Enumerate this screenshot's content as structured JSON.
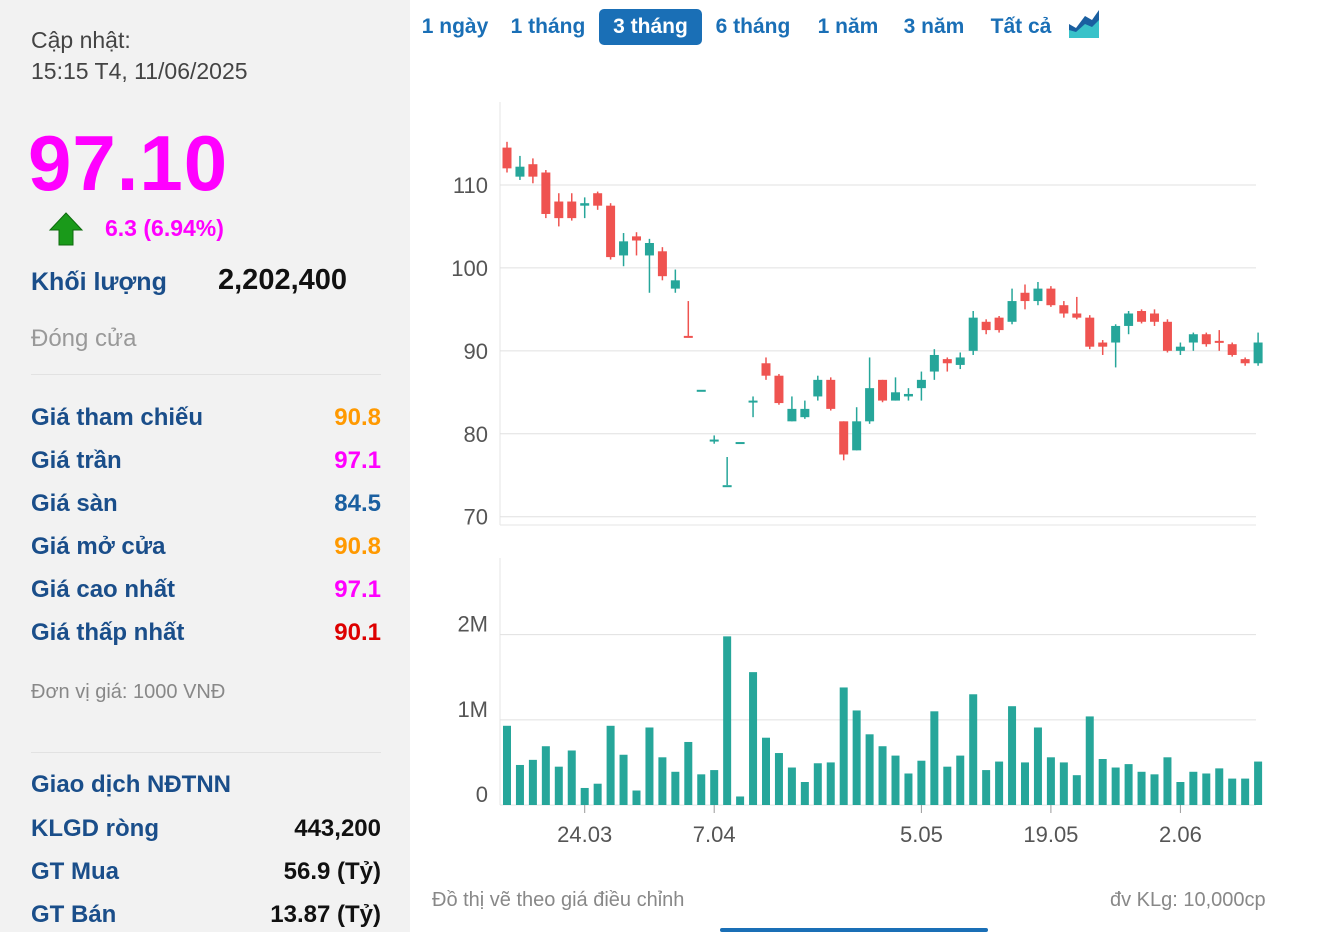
{
  "updated": {
    "label": "Cập nhật:",
    "time": "15:15 T4, 11/06/2025"
  },
  "price": "97.10",
  "change": "6.3 (6.94%)",
  "volume": {
    "label": "Khối lượng",
    "value": "2,202,400"
  },
  "close_label": "Đóng cửa",
  "stats": [
    {
      "label": "Giá tham chiếu",
      "value": "90.8",
      "color": "#ff9900"
    },
    {
      "label": "Giá trần",
      "value": "97.1",
      "color": "#ff00ff"
    },
    {
      "label": "Giá sàn",
      "value": "84.5",
      "color": "#1a5fa0"
    },
    {
      "label": "Giá mở cửa",
      "value": "90.8",
      "color": "#ff9900"
    },
    {
      "label": "Giá cao nhất",
      "value": "97.1",
      "color": "#ff00ff"
    },
    {
      "label": "Giá thấp nhất",
      "value": "90.1",
      "color": "#dd0000"
    }
  ],
  "unit_note": "Đơn vị giá: 1000 VNĐ",
  "foreign": {
    "title": "Giao dịch NĐTNN",
    "rows": [
      {
        "label": "KLGD ròng",
        "value": "443,200"
      },
      {
        "label": "GT Mua",
        "value": "56.9 (Tỷ)"
      },
      {
        "label": "GT Bán",
        "value": "13.87 (Tỷ)"
      }
    ]
  },
  "tabs": [
    {
      "label": "1 ngày",
      "active": false
    },
    {
      "label": "1 tháng",
      "active": false
    },
    {
      "label": "3 tháng",
      "active": true
    },
    {
      "label": "6 tháng",
      "active": false
    },
    {
      "label": "1 năm",
      "active": false
    },
    {
      "label": "3 năm",
      "active": false
    },
    {
      "label": "Tất cả",
      "active": false
    }
  ],
  "chart_icon": "area-chart-icon",
  "colors": {
    "up": "#26a69a",
    "down": "#ef5350",
    "accent": "#1a6fb6",
    "ceiling": "#ff00ff"
  },
  "footer": {
    "left": "Đồ thị vẽ theo giá điều chỉnh",
    "right": "đv KLg: 10,000cp"
  },
  "chart_data": {
    "type": "candlestick",
    "price_axis": {
      "ticks": [
        70,
        80,
        90,
        100,
        110
      ],
      "labels": [
        "70",
        "80",
        "90",
        "100",
        "110"
      ],
      "range": [
        69,
        120
      ]
    },
    "volume_axis": {
      "ticks": [
        0,
        1,
        2
      ],
      "labels": [
        "0",
        "1M",
        "2M"
      ],
      "range": [
        0,
        2.9
      ]
    },
    "x_labels": [
      {
        "label": "24.03",
        "index": 6
      },
      {
        "label": "7.04",
        "index": 16
      },
      {
        "label": "5.05",
        "index": 32
      },
      {
        "label": "19.05",
        "index": 42
      },
      {
        "label": "2.06",
        "index": 52
      }
    ],
    "grid": true,
    "candles": [
      [
        114.5,
        112.0,
        115.2,
        111.5
      ],
      [
        111.0,
        112.2,
        113.5,
        110.6
      ],
      [
        112.5,
        111.0,
        113.2,
        110.2
      ],
      [
        111.5,
        106.5,
        111.8,
        106.0
      ],
      [
        108.0,
        106.0,
        109.0,
        105.0
      ],
      [
        108.0,
        106.0,
        109.0,
        105.7
      ],
      [
        107.5,
        107.8,
        108.5,
        106.0
      ],
      [
        109.0,
        107.5,
        109.2,
        107.0
      ],
      [
        107.5,
        101.3,
        107.8,
        101.0
      ],
      [
        101.5,
        103.2,
        104.2,
        100.2
      ],
      [
        103.8,
        103.3,
        104.3,
        101.5
      ],
      [
        101.5,
        103.0,
        103.5,
        97.0
      ],
      [
        102.0,
        99.0,
        102.5,
        98.5
      ],
      [
        97.5,
        98.5,
        99.8,
        97.0
      ],
      [
        91.8,
        91.7,
        96.0,
        91.7
      ],
      [
        85.3,
        85.3,
        85.3,
        85.3
      ],
      [
        79.3,
        79.3,
        79.8,
        78.8
      ],
      [
        73.8,
        73.8,
        77.2,
        73.8
      ],
      [
        79.0,
        79.0,
        79.0,
        79.0
      ],
      [
        84.0,
        84.0,
        84.5,
        82.0
      ],
      [
        88.5,
        87.0,
        89.2,
        86.5
      ],
      [
        87.0,
        83.7,
        87.2,
        83.5
      ],
      [
        81.5,
        83.0,
        84.5,
        81.5
      ],
      [
        82.0,
        83.0,
        84.0,
        81.8
      ],
      [
        84.5,
        86.5,
        87.0,
        84.0
      ],
      [
        86.5,
        83.0,
        86.8,
        82.8
      ],
      [
        81.5,
        77.5,
        81.5,
        76.8
      ],
      [
        78.0,
        81.5,
        83.2,
        78.0
      ],
      [
        81.5,
        85.5,
        89.2,
        81.2
      ],
      [
        86.5,
        84.0,
        86.5,
        83.8
      ],
      [
        84.0,
        85.0,
        86.8,
        84.0
      ],
      [
        84.5,
        84.8,
        85.5,
        84.0
      ],
      [
        85.5,
        86.5,
        87.5,
        84.0
      ],
      [
        87.5,
        89.5,
        90.2,
        86.5
      ],
      [
        89.0,
        88.5,
        89.2,
        87.5
      ],
      [
        88.3,
        89.2,
        89.8,
        87.8
      ],
      [
        90.0,
        94.0,
        94.8,
        89.5
      ],
      [
        93.5,
        92.5,
        93.8,
        92.0
      ],
      [
        94.0,
        92.5,
        94.2,
        92.2
      ],
      [
        93.5,
        96.0,
        97.5,
        93.2
      ],
      [
        97.0,
        96.0,
        98.0,
        95.0
      ],
      [
        96.0,
        97.5,
        98.3,
        95.5
      ],
      [
        97.5,
        95.5,
        97.8,
        95.3
      ],
      [
        95.5,
        94.5,
        96.0,
        94.0
      ],
      [
        94.5,
        94.0,
        96.5,
        93.8
      ],
      [
        94.0,
        90.5,
        94.3,
        90.2
      ],
      [
        91.0,
        90.5,
        91.3,
        89.5
      ],
      [
        91.0,
        93.0,
        93.2,
        88.0
      ],
      [
        93.0,
        94.5,
        94.8,
        92.0
      ],
      [
        94.8,
        93.5,
        95.0,
        93.3
      ],
      [
        94.5,
        93.5,
        95.0,
        93.0
      ],
      [
        93.5,
        90.0,
        93.8,
        89.8
      ],
      [
        90.0,
        90.5,
        91.0,
        89.5
      ],
      [
        91.0,
        92.0,
        92.2,
        90.0
      ],
      [
        92.0,
        90.8,
        92.2,
        90.5
      ],
      [
        91.2,
        91.0,
        92.5,
        90.0
      ],
      [
        90.8,
        89.5,
        91.0,
        89.3
      ],
      [
        89.0,
        88.5,
        89.2,
        88.2
      ],
      [
        88.5,
        91.0,
        92.2,
        88.2
      ]
    ],
    "volumes": [
      0.93,
      0.47,
      0.53,
      0.69,
      0.45,
      0.64,
      0.2,
      0.25,
      0.93,
      0.59,
      0.17,
      0.91,
      0.56,
      0.39,
      0.74,
      0.36,
      0.41,
      1.98,
      0.1,
      1.56,
      0.79,
      0.61,
      0.44,
      0.27,
      0.49,
      0.5,
      1.38,
      1.11,
      0.83,
      0.69,
      0.58,
      0.37,
      0.52,
      1.1,
      0.45,
      0.58,
      1.3,
      0.41,
      0.51,
      1.16,
      0.5,
      0.91,
      0.56,
      0.5,
      0.35,
      1.04,
      0.54,
      0.44,
      0.48,
      0.39,
      0.36,
      0.56,
      0.27,
      0.39,
      0.37,
      0.43,
      0.31,
      0.31,
      0.51
    ]
  }
}
